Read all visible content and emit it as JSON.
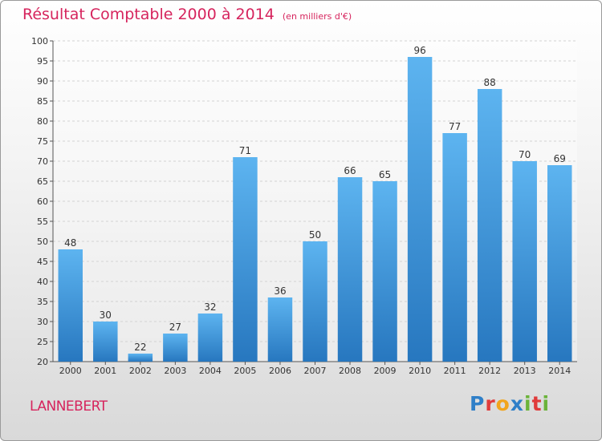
{
  "header": {
    "title": "Résultat Comptable 2000 à 2014",
    "subtitle": "(en milliers d'€)"
  },
  "footer": {
    "commune": "LANNEBERT",
    "brand_letters": [
      {
        "ch": "P",
        "color": "#2f7fc8"
      },
      {
        "ch": "r",
        "color": "#e03b3b"
      },
      {
        "ch": "o",
        "color": "#f2a51c"
      },
      {
        "ch": "x",
        "color": "#2f7fc8"
      },
      {
        "ch": "i",
        "color": "#6bb33a"
      },
      {
        "ch": "t",
        "color": "#e03b3b"
      },
      {
        "ch": "i",
        "color": "#6bb33a"
      }
    ]
  },
  "colors": {
    "bar_top": "#5db4f0",
    "bar_bottom": "#2777bf",
    "grid": "#d2d2d2",
    "accent": "#d6245d"
  },
  "chart_data": {
    "type": "bar",
    "title": "Résultat Comptable 2000 à 2014",
    "subtitle": "(en milliers d'€)",
    "categories": [
      "2000",
      "2001",
      "2002",
      "2003",
      "2004",
      "2005",
      "2006",
      "2007",
      "2008",
      "2009",
      "2010",
      "2011",
      "2012",
      "2013",
      "2014"
    ],
    "values": [
      48,
      30,
      22,
      27,
      32,
      71,
      36,
      50,
      66,
      65,
      96,
      77,
      88,
      70,
      69
    ],
    "ylim": [
      20,
      100
    ],
    "yticks": [
      20,
      25,
      30,
      35,
      40,
      45,
      50,
      55,
      60,
      65,
      70,
      75,
      80,
      85,
      90,
      95,
      100
    ],
    "grid": true,
    "xlabel": "",
    "ylabel": ""
  }
}
